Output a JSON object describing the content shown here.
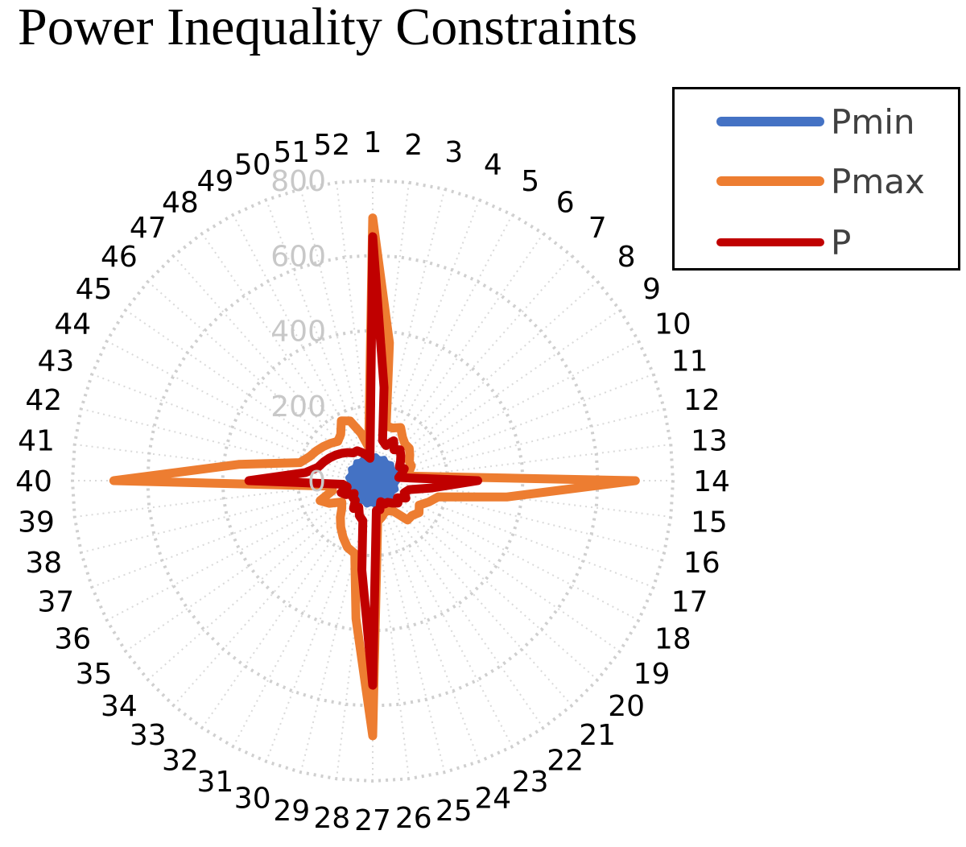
{
  "chart_data": {
    "type": "radar",
    "title": "Power Inequality Constraints",
    "xlabel": "",
    "ylabel": "",
    "rlim": [
      0,
      800
    ],
    "r_ticks": [
      0,
      200,
      400,
      600,
      800
    ],
    "grid": true,
    "legend_position": "top-right",
    "categories": [
      "1",
      "2",
      "3",
      "4",
      "5",
      "6",
      "7",
      "8",
      "9",
      "10",
      "11",
      "12",
      "13",
      "14",
      "15",
      "16",
      "17",
      "18",
      "19",
      "20",
      "21",
      "22",
      "23",
      "24",
      "25",
      "26",
      "27",
      "28",
      "29",
      "30",
      "31",
      "32",
      "33",
      "34",
      "35",
      "36",
      "37",
      "38",
      "39",
      "40",
      "41",
      "42",
      "43",
      "44",
      "45",
      "46",
      "47",
      "48",
      "49",
      "50",
      "51",
      "52"
    ],
    "series": [
      {
        "name": "Pmin",
        "color": "#4472C4",
        "values": [
          60,
          65,
          60,
          60,
          65,
          60,
          60,
          65,
          60,
          60,
          65,
          60,
          60,
          65,
          60,
          60,
          65,
          60,
          60,
          65,
          60,
          60,
          65,
          60,
          60,
          65,
          60,
          60,
          65,
          60,
          60,
          65,
          60,
          60,
          65,
          60,
          60,
          65,
          60,
          60,
          65,
          60,
          60,
          65,
          60,
          60,
          65,
          60,
          60,
          65,
          60,
          60
        ]
      },
      {
        "name": "Pmax",
        "color": "#ED7D31",
        "values": [
          700,
          370,
          150,
          150,
          160,
          140,
          130,
          130,
          120,
          110,
          110,
          100,
          100,
          700,
          360,
          180,
          160,
          140,
          150,
          140,
          140,
          100,
          90,
          90,
          100,
          110,
          680,
          370,
          200,
          190,
          170,
          150,
          130,
          110,
          100,
          130,
          150,
          110,
          120,
          690,
          360,
          200,
          180,
          170,
          160,
          150,
          140,
          150,
          180,
          170,
          130,
          90
        ]
      },
      {
        "name": "P",
        "color": "#C00000",
        "values": [
          650,
          250,
          110,
          100,
          120,
          100,
          110,
          100,
          90,
          80,
          90,
          80,
          70,
          280,
          160,
          100,
          90,
          100,
          80,
          90,
          80,
          70,
          70,
          60,
          80,
          80,
          545,
          240,
          110,
          100,
          80,
          90,
          70,
          70,
          60,
          80,
          90,
          70,
          80,
          330,
          180,
          150,
          140,
          130,
          120,
          110,
          100,
          90,
          90,
          80,
          70,
          60
        ]
      }
    ]
  },
  "legend": {
    "items": [
      {
        "label": "Pmin",
        "color": "#4472C4"
      },
      {
        "label": "Pmax",
        "color": "#ED7D31"
      },
      {
        "label": "P",
        "color": "#C00000"
      }
    ]
  },
  "axis": {
    "tick_labels": [
      "0",
      "200",
      "400",
      "600",
      "800"
    ]
  }
}
